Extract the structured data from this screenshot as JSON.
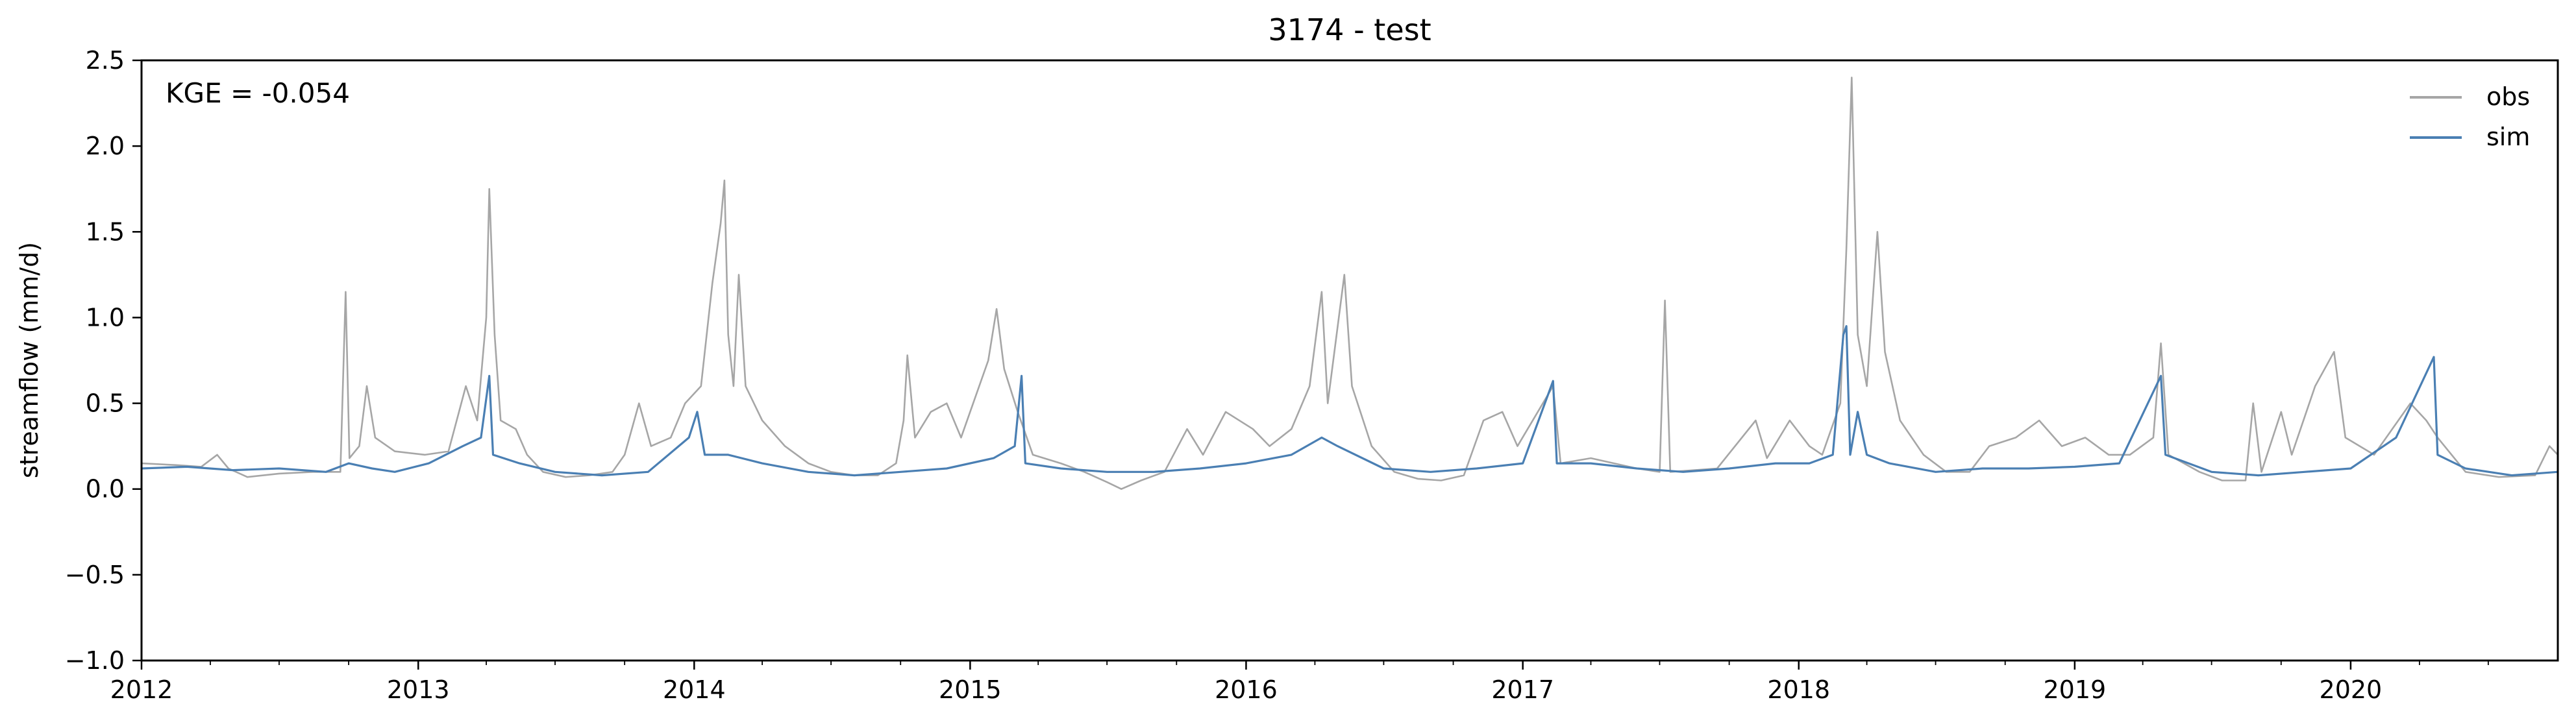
{
  "chart_data": {
    "type": "line",
    "title": "3174 - test",
    "xlabel": "",
    "ylabel": "streamflow (mm/d)",
    "annotation": "KGE = -0.054",
    "xlim": [
      "2012-01-01",
      "2020-10-01"
    ],
    "ylim": [
      -1.0,
      2.5
    ],
    "x_ticks": [
      "2012",
      "2013",
      "2014",
      "2015",
      "2016",
      "2017",
      "2018",
      "2019",
      "2020"
    ],
    "y_ticks": [
      "−1.0",
      "−0.5",
      "0.0",
      "0.5",
      "1.0",
      "1.5",
      "2.0",
      "2.5"
    ],
    "y_tick_values": [
      -1.0,
      -0.5,
      0.0,
      0.5,
      1.0,
      1.5,
      2.0,
      2.5
    ],
    "legend_position": "top-right",
    "grid": false,
    "series": [
      {
        "name": "obs",
        "color": "#a6a6a6",
        "points": [
          [
            "2012-01-01",
            0.15
          ],
          [
            "2012-02-15",
            0.14
          ],
          [
            "2012-03-20",
            0.13
          ],
          [
            "2012-04-10",
            0.2
          ],
          [
            "2012-04-25",
            0.12
          ],
          [
            "2012-05-20",
            0.07
          ],
          [
            "2012-07-01",
            0.09
          ],
          [
            "2012-08-15",
            0.1
          ],
          [
            "2012-09-20",
            0.1
          ],
          [
            "2012-09-27",
            1.15
          ],
          [
            "2012-10-02",
            0.18
          ],
          [
            "2012-10-15",
            0.25
          ],
          [
            "2012-10-25",
            0.6
          ],
          [
            "2012-11-05",
            0.3
          ],
          [
            "2012-12-01",
            0.22
          ],
          [
            "2013-01-10",
            0.2
          ],
          [
            "2013-02-10",
            0.22
          ],
          [
            "2013-03-05",
            0.6
          ],
          [
            "2013-03-20",
            0.4
          ],
          [
            "2013-04-01",
            1.0
          ],
          [
            "2013-04-05",
            1.75
          ],
          [
            "2013-04-12",
            0.9
          ],
          [
            "2013-04-20",
            0.4
          ],
          [
            "2013-05-10",
            0.35
          ],
          [
            "2013-05-25",
            0.2
          ],
          [
            "2013-06-15",
            0.1
          ],
          [
            "2013-07-15",
            0.07
          ],
          [
            "2013-08-15",
            0.08
          ],
          [
            "2013-09-15",
            0.1
          ],
          [
            "2013-10-01",
            0.2
          ],
          [
            "2013-10-20",
            0.5
          ],
          [
            "2013-11-05",
            0.25
          ],
          [
            "2013-12-01",
            0.3
          ],
          [
            "2013-12-20",
            0.5
          ],
          [
            "2014-01-10",
            0.6
          ],
          [
            "2014-01-25",
            1.2
          ],
          [
            "2014-02-05",
            1.55
          ],
          [
            "2014-02-10",
            1.8
          ],
          [
            "2014-02-15",
            0.9
          ],
          [
            "2014-02-22",
            0.6
          ],
          [
            "2014-03-01",
            1.25
          ],
          [
            "2014-03-10",
            0.6
          ],
          [
            "2014-04-01",
            0.4
          ],
          [
            "2014-05-01",
            0.25
          ],
          [
            "2014-06-01",
            0.15
          ],
          [
            "2014-07-01",
            0.1
          ],
          [
            "2014-08-01",
            0.08
          ],
          [
            "2014-09-01",
            0.08
          ],
          [
            "2014-09-25",
            0.15
          ],
          [
            "2014-10-05",
            0.4
          ],
          [
            "2014-10-10",
            0.78
          ],
          [
            "2014-10-20",
            0.3
          ],
          [
            "2014-11-10",
            0.45
          ],
          [
            "2014-12-01",
            0.5
          ],
          [
            "2014-12-20",
            0.3
          ],
          [
            "2015-01-25",
            0.75
          ],
          [
            "2015-02-05",
            1.05
          ],
          [
            "2015-02-15",
            0.7
          ],
          [
            "2015-03-05",
            0.45
          ],
          [
            "2015-03-25",
            0.2
          ],
          [
            "2015-05-01",
            0.15
          ],
          [
            "2015-06-01",
            0.1
          ],
          [
            "2015-07-01",
            0.04
          ],
          [
            "2015-07-20",
            0.0
          ],
          [
            "2015-08-15",
            0.05
          ],
          [
            "2015-09-15",
            0.1
          ],
          [
            "2015-10-15",
            0.35
          ],
          [
            "2015-11-05",
            0.2
          ],
          [
            "2015-12-05",
            0.45
          ],
          [
            "2016-01-10",
            0.35
          ],
          [
            "2016-02-01",
            0.25
          ],
          [
            "2016-03-01",
            0.35
          ],
          [
            "2016-03-25",
            0.6
          ],
          [
            "2016-04-10",
            1.15
          ],
          [
            "2016-04-18",
            0.5
          ],
          [
            "2016-05-10",
            1.25
          ],
          [
            "2016-05-20",
            0.6
          ],
          [
            "2016-06-15",
            0.25
          ],
          [
            "2016-07-15",
            0.1
          ],
          [
            "2016-08-15",
            0.06
          ],
          [
            "2016-09-15",
            0.05
          ],
          [
            "2016-10-15",
            0.08
          ],
          [
            "2016-11-10",
            0.4
          ],
          [
            "2016-12-05",
            0.45
          ],
          [
            "2016-12-25",
            0.25
          ],
          [
            "2017-02-10",
            0.6
          ],
          [
            "2017-02-20",
            0.15
          ],
          [
            "2017-04-01",
            0.18
          ],
          [
            "2017-06-01",
            0.12
          ],
          [
            "2017-07-01",
            0.1
          ],
          [
            "2017-07-08",
            1.1
          ],
          [
            "2017-07-15",
            0.1
          ],
          [
            "2017-09-15",
            0.12
          ],
          [
            "2017-11-05",
            0.4
          ],
          [
            "2017-11-20",
            0.18
          ],
          [
            "2017-12-20",
            0.4
          ],
          [
            "2018-01-15",
            0.25
          ],
          [
            "2018-02-01",
            0.2
          ],
          [
            "2018-02-25",
            0.5
          ],
          [
            "2018-03-05",
            1.4
          ],
          [
            "2018-03-12",
            2.4
          ],
          [
            "2018-03-20",
            0.9
          ],
          [
            "2018-04-01",
            0.6
          ],
          [
            "2018-04-15",
            1.5
          ],
          [
            "2018-04-25",
            0.8
          ],
          [
            "2018-05-15",
            0.4
          ],
          [
            "2018-06-15",
            0.2
          ],
          [
            "2018-07-15",
            0.1
          ],
          [
            "2018-08-15",
            0.1
          ],
          [
            "2018-09-10",
            0.25
          ],
          [
            "2018-10-15",
            0.3
          ],
          [
            "2018-11-15",
            0.4
          ],
          [
            "2018-12-15",
            0.25
          ],
          [
            "2019-01-15",
            0.3
          ],
          [
            "2019-02-15",
            0.2
          ],
          [
            "2019-03-15",
            0.2
          ],
          [
            "2019-04-15",
            0.3
          ],
          [
            "2019-04-25",
            0.85
          ],
          [
            "2019-05-05",
            0.2
          ],
          [
            "2019-06-15",
            0.1
          ],
          [
            "2019-07-15",
            0.05
          ],
          [
            "2019-08-15",
            0.05
          ],
          [
            "2019-08-25",
            0.5
          ],
          [
            "2019-09-05",
            0.1
          ],
          [
            "2019-10-01",
            0.45
          ],
          [
            "2019-10-15",
            0.2
          ],
          [
            "2019-11-15",
            0.6
          ],
          [
            "2019-12-10",
            0.8
          ],
          [
            "2019-12-25",
            0.3
          ],
          [
            "2020-02-01",
            0.2
          ],
          [
            "2020-03-20",
            0.5
          ],
          [
            "2020-04-10",
            0.4
          ],
          [
            "2020-04-25",
            0.3
          ],
          [
            "2020-06-01",
            0.1
          ],
          [
            "2020-07-15",
            0.07
          ],
          [
            "2020-09-01",
            0.08
          ],
          [
            "2020-09-20",
            0.25
          ],
          [
            "2020-10-01",
            0.2
          ]
        ]
      },
      {
        "name": "sim",
        "color": "#4a7fb3",
        "points": [
          [
            "2012-01-01",
            0.12
          ],
          [
            "2012-03-01",
            0.13
          ],
          [
            "2012-05-01",
            0.11
          ],
          [
            "2012-07-01",
            0.12
          ],
          [
            "2012-09-01",
            0.1
          ],
          [
            "2012-10-01",
            0.15
          ],
          [
            "2012-11-01",
            0.12
          ],
          [
            "2012-12-01",
            0.1
          ],
          [
            "2013-01-15",
            0.15
          ],
          [
            "2013-03-01",
            0.25
          ],
          [
            "2013-03-25",
            0.3
          ],
          [
            "2013-04-05",
            0.66
          ],
          [
            "2013-04-10",
            0.2
          ],
          [
            "2013-05-15",
            0.15
          ],
          [
            "2013-07-01",
            0.1
          ],
          [
            "2013-09-01",
            0.08
          ],
          [
            "2013-11-01",
            0.1
          ],
          [
            "2013-12-25",
            0.3
          ],
          [
            "2014-01-05",
            0.45
          ],
          [
            "2014-01-15",
            0.2
          ],
          [
            "2014-02-15",
            0.2
          ],
          [
            "2014-04-01",
            0.15
          ],
          [
            "2014-06-01",
            0.1
          ],
          [
            "2014-08-01",
            0.08
          ],
          [
            "2014-10-01",
            0.1
          ],
          [
            "2014-12-01",
            0.12
          ],
          [
            "2015-02-01",
            0.18
          ],
          [
            "2015-03-01",
            0.25
          ],
          [
            "2015-03-10",
            0.66
          ],
          [
            "2015-03-15",
            0.15
          ],
          [
            "2015-05-01",
            0.12
          ],
          [
            "2015-07-01",
            0.1
          ],
          [
            "2015-09-01",
            0.1
          ],
          [
            "2015-11-01",
            0.12
          ],
          [
            "2016-01-01",
            0.15
          ],
          [
            "2016-03-01",
            0.2
          ],
          [
            "2016-04-10",
            0.3
          ],
          [
            "2016-05-01",
            0.25
          ],
          [
            "2016-07-01",
            0.12
          ],
          [
            "2016-09-01",
            0.1
          ],
          [
            "2016-11-01",
            0.12
          ],
          [
            "2017-01-01",
            0.15
          ],
          [
            "2017-02-10",
            0.63
          ],
          [
            "2017-02-15",
            0.15
          ],
          [
            "2017-04-01",
            0.15
          ],
          [
            "2017-06-01",
            0.12
          ],
          [
            "2017-08-01",
            0.1
          ],
          [
            "2017-10-01",
            0.12
          ],
          [
            "2017-12-01",
            0.15
          ],
          [
            "2018-01-15",
            0.15
          ],
          [
            "2018-02-15",
            0.2
          ],
          [
            "2018-03-01",
            0.9
          ],
          [
            "2018-03-05",
            0.95
          ],
          [
            "2018-03-10",
            0.2
          ],
          [
            "2018-03-20",
            0.45
          ],
          [
            "2018-04-01",
            0.2
          ],
          [
            "2018-05-01",
            0.15
          ],
          [
            "2018-07-01",
            0.1
          ],
          [
            "2018-09-01",
            0.12
          ],
          [
            "2018-11-01",
            0.12
          ],
          [
            "2019-01-01",
            0.13
          ],
          [
            "2019-03-01",
            0.15
          ],
          [
            "2019-04-25",
            0.66
          ],
          [
            "2019-05-01",
            0.2
          ],
          [
            "2019-07-01",
            0.1
          ],
          [
            "2019-09-01",
            0.08
          ],
          [
            "2019-11-01",
            0.1
          ],
          [
            "2020-01-01",
            0.12
          ],
          [
            "2020-03-01",
            0.3
          ],
          [
            "2020-04-20",
            0.77
          ],
          [
            "2020-04-25",
            0.2
          ],
          [
            "2020-06-01",
            0.12
          ],
          [
            "2020-08-01",
            0.08
          ],
          [
            "2020-10-01",
            0.1
          ]
        ]
      }
    ]
  }
}
